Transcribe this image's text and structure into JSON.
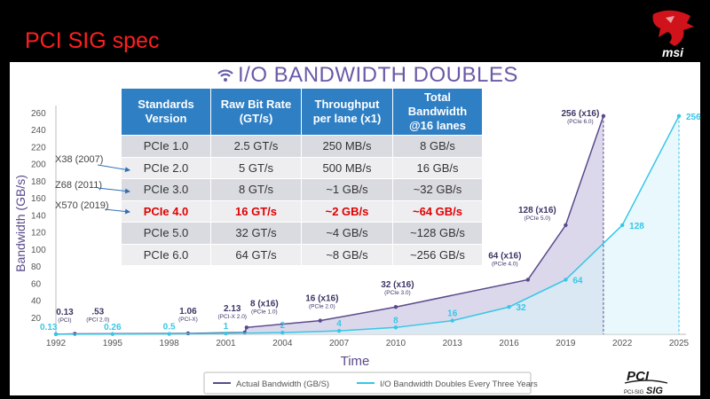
{
  "page": {
    "title": "PCI SIG spec",
    "brand": "msi"
  },
  "slide": {
    "title": "I/O BANDWIDTH DOUBLES",
    "logo_text": "PCI-SIG"
  },
  "table": {
    "headers": [
      "Standards\nVersion",
      "Raw Bit Rate\n(GT/s)",
      "Throughput\nper lane (x1)",
      "Total\nBandwidth\n@16 lanes"
    ],
    "rows": [
      [
        "PCIe 1.0",
        "2.5 GT/s",
        "250 MB/s",
        "8 GB/s"
      ],
      [
        "PCIe 2.0",
        "5 GT/s",
        "500 MB/s",
        "16 GB/s"
      ],
      [
        "PCIe 3.0",
        "8 GT/s",
        "~1 GB/s",
        "~32 GB/s"
      ],
      [
        "PCIe 4.0",
        "16 GT/s",
        "~2 GB/s",
        "~64 GB/s"
      ],
      [
        "PCIe 5.0",
        "32 GT/s",
        "~4 GB/s",
        "~128 GB/s"
      ],
      [
        "PCIe 6.0",
        "64 GT/s",
        "~8 GB/s",
        "~256 GB/s"
      ]
    ],
    "highlight_row": 3,
    "highlight_color": "#e00000"
  },
  "side_labels": [
    "X38 (2007)",
    "Z68 (2011)",
    "X570 (2019)"
  ],
  "chart_data": {
    "type": "line",
    "xlabel": "Time",
    "ylabel": "Bandwidth (GB/s)",
    "xlim": [
      1992,
      2025
    ],
    "ylim": [
      0,
      260
    ],
    "xticks": [
      1992,
      1995,
      1998,
      2001,
      2004,
      2007,
      2010,
      2013,
      2016,
      2019,
      2022,
      2025
    ],
    "yticks": [
      20,
      40,
      60,
      80,
      100,
      120,
      140,
      160,
      180,
      200,
      220,
      240,
      260
    ],
    "grid": false,
    "legend_position": "bottom",
    "series": [
      {
        "name": "Actual Bandwidth (GB/S)",
        "color": "#5b4a8b",
        "fill": "#d6d1e8",
        "points": [
          {
            "x": 1992,
            "y": 0.13,
            "label": "0.13",
            "sub": "(PCI)"
          },
          {
            "x": 1993,
            "y": 0.53,
            "label": ".53",
            "sub": "(PCI 2.0)"
          },
          {
            "x": 1999,
            "y": 1.06,
            "label": "1.06",
            "sub": "(PCI-X)"
          },
          {
            "x": 2002,
            "y": 2.13,
            "label": "2.13",
            "sub": "(PCI-X 2.0)"
          },
          {
            "x": 2002.1,
            "y": 8,
            "label": "8 (x16)",
            "sub": "(PCIe 1.0)"
          },
          {
            "x": 2006,
            "y": 16,
            "label": "16 (x16)",
            "sub": "(PCIe 2.0)"
          },
          {
            "x": 2010,
            "y": 32,
            "label": "32 (x16)",
            "sub": "(PCIe 3.0)"
          },
          {
            "x": 2017,
            "y": 64,
            "label": "64 (x16)",
            "sub": "(PCIe 4.0)"
          },
          {
            "x": 2019,
            "y": 128,
            "label": "128 (x16)",
            "sub": "(PCIe 5.0)"
          },
          {
            "x": 2021,
            "y": 256,
            "label": "256 (x16)",
            "sub": "(PCIe 6.0)"
          }
        ]
      },
      {
        "name": "I/O Bandwidth Doubles Every Three Years",
        "color": "#38c6e6",
        "fill": "#d8f3fa",
        "points": [
          {
            "x": 1992,
            "y": 0.13,
            "label": "0.13"
          },
          {
            "x": 1995,
            "y": 0.26,
            "label": "0.26"
          },
          {
            "x": 1998,
            "y": 0.5,
            "label": "0.5"
          },
          {
            "x": 2001,
            "y": 1,
            "label": "1"
          },
          {
            "x": 2004,
            "y": 2,
            "label": "2"
          },
          {
            "x": 2007,
            "y": 4,
            "label": "4"
          },
          {
            "x": 2010,
            "y": 8,
            "label": "8"
          },
          {
            "x": 2013,
            "y": 16,
            "label": "16"
          },
          {
            "x": 2016,
            "y": 32,
            "label": "32"
          },
          {
            "x": 2019,
            "y": 64,
            "label": "64"
          },
          {
            "x": 2022,
            "y": 128,
            "label": "128"
          },
          {
            "x": 2025,
            "y": 256,
            "label": "256"
          }
        ]
      }
    ]
  }
}
